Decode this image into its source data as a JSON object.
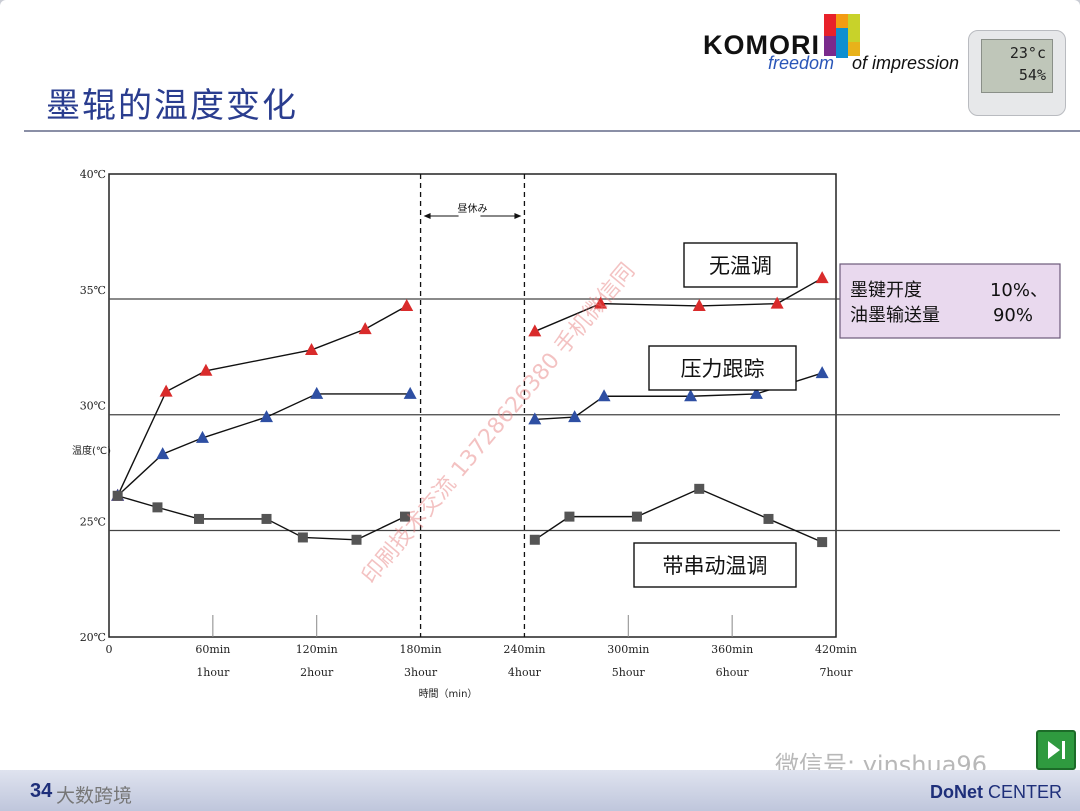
{
  "slide": {
    "title": "墨辊的温度变化",
    "page_number": "34",
    "footer_left": "大数跨境",
    "footer_brand_bold": "DoNet",
    "footer_brand_rest": " CENTER",
    "wechat_mark": "微信号: yinshua96"
  },
  "logo": {
    "main": "KOMORI",
    "tag1": "freedom",
    "tag2": "of impression"
  },
  "thermometer": {
    "temp": "23°c",
    "humidity": "54%"
  },
  "colors": {
    "red_series": "#d92b2b",
    "blue_series": "#2e4fa3",
    "gray_series": "#555555",
    "legend_box_bg": "#e9d9ee",
    "title": "#2a3d8f"
  },
  "chart_data": {
    "type": "line",
    "xlabel": "時間（min）",
    "ylabel": "温度(℃)",
    "xlim": [
      0,
      420
    ],
    "ylim": [
      20,
      40
    ],
    "x_ticks": [
      {
        "value": 0,
        "label": "0",
        "sub": ""
      },
      {
        "value": 60,
        "label": "60min",
        "sub": "1hour"
      },
      {
        "value": 120,
        "label": "120min",
        "sub": "2hour"
      },
      {
        "value": 180,
        "label": "180min",
        "sub": "3hour"
      },
      {
        "value": 240,
        "label": "240min",
        "sub": "4hour"
      },
      {
        "value": 300,
        "label": "300min",
        "sub": "5hour"
      },
      {
        "value": 360,
        "label": "360min",
        "sub": "6hour"
      },
      {
        "value": 420,
        "label": "420min",
        "sub": "7hour"
      }
    ],
    "y_ticks": [
      {
        "value": 20,
        "label": "20℃"
      },
      {
        "value": 25,
        "label": "25℃"
      },
      {
        "value": 30,
        "label": "30℃"
      },
      {
        "value": 35,
        "label": "35℃"
      },
      {
        "value": 40,
        "label": "40℃"
      }
    ],
    "hlines": [
      24.6,
      29.6,
      34.6
    ],
    "break_period": {
      "x": [
        180,
        240
      ],
      "label": "昼休み"
    },
    "series": [
      {
        "name": "无温调",
        "marker": "triangle",
        "color": "#d92b2b",
        "segments": [
          [
            [
              5,
              26.1
            ],
            [
              33,
              30.6
            ],
            [
              56,
              31.5
            ],
            [
              117,
              32.4
            ],
            [
              148,
              33.3
            ],
            [
              172,
              34.3
            ]
          ],
          [
            [
              246,
              33.2
            ],
            [
              284,
              34.4
            ],
            [
              341,
              34.3
            ],
            [
              386,
              34.4
            ],
            [
              412,
              35.5
            ]
          ]
        ]
      },
      {
        "name": "压力跟踪",
        "marker": "triangle",
        "color": "#2e4fa3",
        "segments": [
          [
            [
              5,
              26.1
            ],
            [
              31,
              27.9
            ],
            [
              54,
              28.6
            ],
            [
              91,
              29.5
            ],
            [
              120,
              30.5
            ],
            [
              174,
              30.5
            ]
          ],
          [
            [
              246,
              29.4
            ],
            [
              269,
              29.5
            ],
            [
              286,
              30.4
            ],
            [
              336,
              30.4
            ],
            [
              374,
              30.5
            ],
            [
              412,
              31.4
            ]
          ]
        ]
      },
      {
        "name": "带串动温调",
        "marker": "square",
        "color": "#555555",
        "segments": [
          [
            [
              5,
              26.1
            ],
            [
              28,
              25.6
            ],
            [
              52,
              25.1
            ],
            [
              91,
              25.1
            ],
            [
              112,
              24.3
            ],
            [
              143,
              24.2
            ],
            [
              171,
              25.2
            ]
          ],
          [
            [
              246,
              24.2
            ],
            [
              266,
              25.2
            ],
            [
              305,
              25.2
            ],
            [
              341,
              26.4
            ],
            [
              381,
              25.1
            ],
            [
              412,
              24.1
            ]
          ]
        ]
      }
    ],
    "annotations": [
      "无温调",
      "压力跟踪",
      "带串动温调"
    ],
    "side_note": {
      "line1_label": "墨键开度",
      "line1_value": "10%、",
      "line2_label": "油墨输送量",
      "line2_value": "90%"
    },
    "watermark": "印刷技术交流 13728626380 手机微信同"
  }
}
